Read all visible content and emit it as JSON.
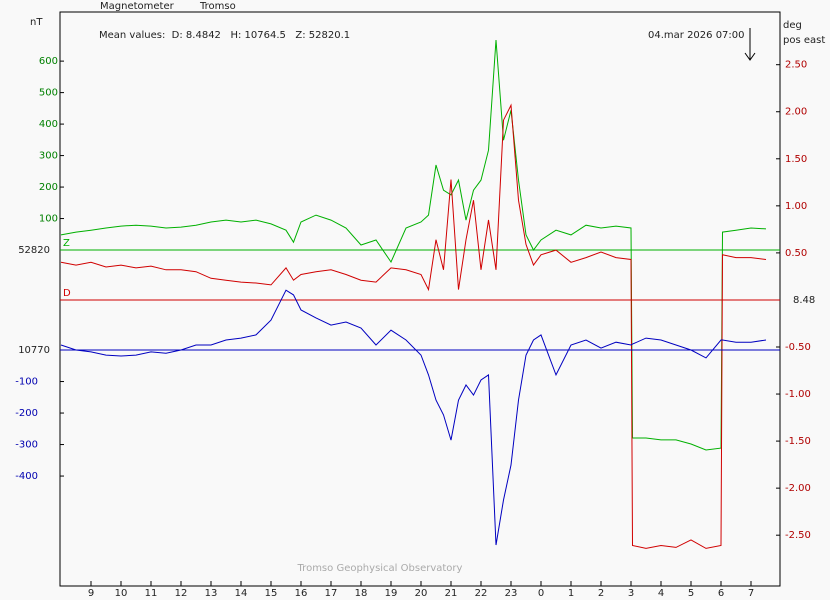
{
  "chart_data": {
    "type": "line",
    "title": "Magnetometer",
    "station": "Tromso",
    "subtitle": "Mean values:  D: 8.4842   H: 10764.5   Z: 52820.1",
    "timestamp": "04.mar 2026 07:00",
    "left_unit": "nT",
    "right_unit": [
      "deg",
      "pos east"
    ],
    "footer": "Tromso Geophysical Observatory",
    "x": [
      8,
      8.5,
      9,
      9.5,
      10,
      10.5,
      11,
      11.5,
      12,
      12.5,
      13,
      13.5,
      14,
      14.5,
      15,
      15.5,
      15.75,
      16,
      16.5,
      17,
      17.5,
      18,
      18.5,
      19,
      19.5,
      20,
      20.25,
      20.5,
      20.75,
      21,
      21.25,
      21.5,
      21.75,
      22,
      22.25,
      22.5,
      22.75,
      23,
      23.25,
      23.5,
      23.75,
      24,
      24.5,
      25,
      25.5,
      26,
      26.5,
      27,
      27.05,
      27.5,
      28,
      28.5,
      29,
      29.5,
      30,
      30.05,
      30.5,
      31,
      31.5
    ],
    "xlim": [
      8,
      32
    ],
    "xticks": [
      9,
      10,
      11,
      12,
      13,
      14,
      15,
      16,
      17,
      18,
      19,
      20,
      21,
      22,
      23,
      {
        "value": 24,
        "label": "0"
      },
      {
        "value": 25,
        "label": "1"
      },
      {
        "value": 26,
        "label": "2"
      },
      {
        "value": 27,
        "label": "3"
      },
      {
        "value": 28,
        "label": "4"
      },
      {
        "value": 29,
        "label": "5"
      },
      {
        "value": 30,
        "label": "6"
      },
      {
        "value": 31,
        "label": "7"
      }
    ],
    "series": [
      {
        "name": "Z",
        "color": "#00b000",
        "tick_color": "#008000",
        "baseline": 52820,
        "ylim": [
          -1067,
          756
        ],
        "yticks": [
          100,
          200,
          300,
          400,
          500,
          600
        ],
        "values": [
          48,
          57,
          63,
          70,
          76,
          79,
          76,
          70,
          73,
          79,
          89,
          95,
          89,
          95,
          83,
          63,
          25,
          89,
          111,
          95,
          70,
          16,
          32,
          -38,
          70,
          89,
          111,
          270,
          190,
          175,
          222,
          95,
          190,
          222,
          317,
          667,
          349,
          444,
          222,
          48,
          0,
          32,
          63,
          48,
          79,
          70,
          76,
          70,
          -597,
          -597,
          -603,
          -603,
          -616,
          -635,
          -629,
          57,
          63,
          70,
          67
        ]
      },
      {
        "name": "D",
        "color": "#d00000",
        "tick_color": "#b00000",
        "baseline": 8.48,
        "axis": "y2",
        "ylim": [
          -3.04,
          3.06
        ],
        "yticks": [
          {
            "value": 2.5,
            "label": "2.50"
          },
          {
            "value": 2,
            "label": "2.00"
          },
          {
            "value": 1.5,
            "label": "1.50"
          },
          {
            "value": 1,
            "label": "1.00"
          },
          {
            "value": 0.5,
            "label": "0.50"
          },
          {
            "value": -0.5,
            "label": "-0.50"
          },
          {
            "value": -1,
            "label": "-1.00"
          },
          {
            "value": -1.5,
            "label": "-1.50"
          },
          {
            "value": -2,
            "label": "-2.00"
          },
          {
            "value": -2.5,
            "label": "-2.50"
          }
        ],
        "values": [
          0.4,
          0.37,
          0.4,
          0.35,
          0.37,
          0.34,
          0.36,
          0.32,
          0.32,
          0.3,
          0.23,
          0.21,
          0.19,
          0.18,
          0.16,
          0.34,
          0.21,
          0.27,
          0.3,
          0.32,
          0.27,
          0.21,
          0.19,
          0.34,
          0.32,
          0.27,
          0.11,
          0.64,
          0.32,
          1.28,
          0.11,
          0.64,
          1.06,
          0.32,
          0.85,
          0.32,
          1.91,
          2.07,
          1.06,
          0.59,
          0.37,
          0.48,
          0.53,
          0.4,
          0.45,
          0.51,
          0.45,
          0.43,
          -2.61,
          -2.64,
          -2.61,
          -2.63,
          -2.55,
          -2.64,
          -2.61,
          0.48,
          0.45,
          0.45,
          0.43
        ]
      },
      {
        "color": "#0000c0",
        "tick_color": "#0000b0",
        "baseline": 10770,
        "ylim": [
          -749,
          1073
        ],
        "yticks": [
          -100,
          -200,
          -300,
          -400
        ],
        "values": [
          16,
          0,
          -6,
          -16,
          -19,
          -16,
          -6,
          -10,
          0,
          16,
          16,
          32,
          38,
          48,
          95,
          190,
          175,
          127,
          102,
          79,
          89,
          70,
          16,
          63,
          32,
          -16,
          -79,
          -159,
          -206,
          -286,
          -159,
          -111,
          -143,
          -95,
          -79,
          -619,
          -476,
          -365,
          -159,
          -16,
          32,
          48,
          -79,
          16,
          32,
          6,
          25,
          16,
          19,
          38,
          32,
          16,
          0,
          -25,
          32,
          32,
          25,
          25,
          32
        ]
      }
    ]
  }
}
